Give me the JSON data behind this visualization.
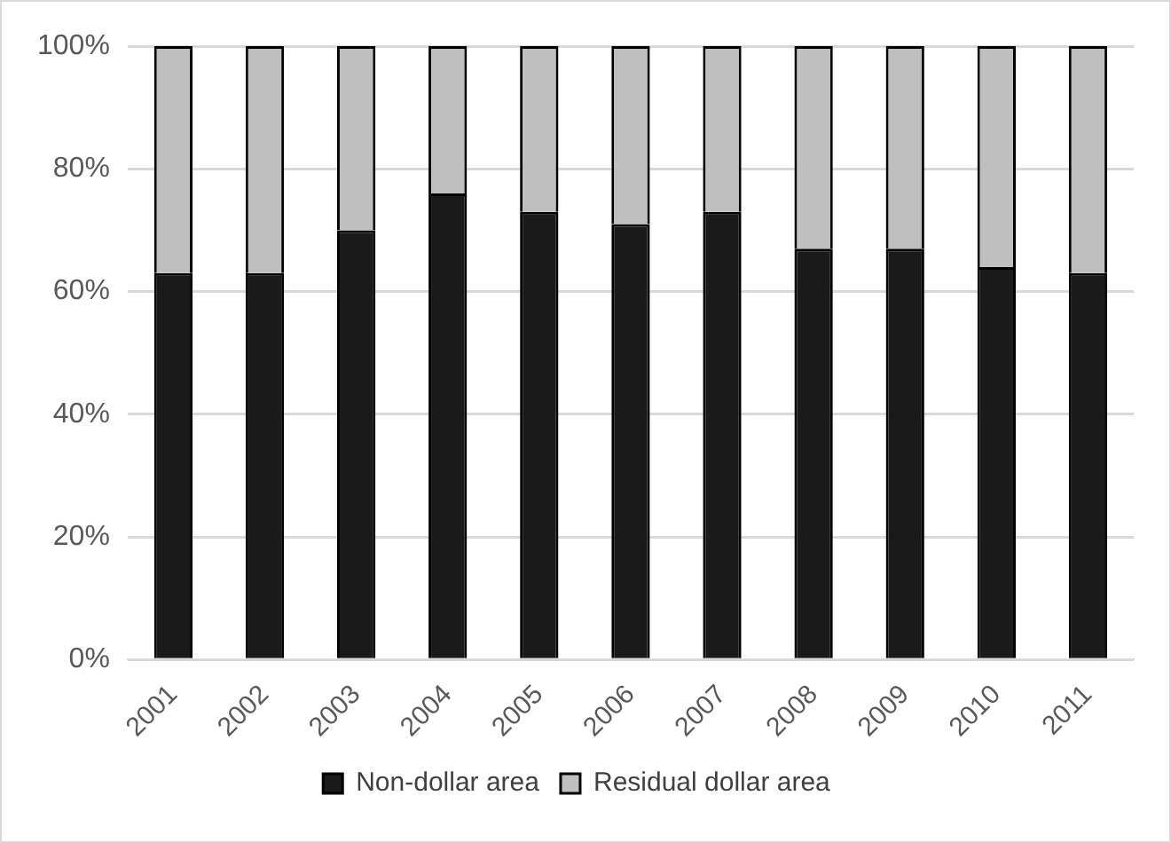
{
  "chart_data": {
    "type": "bar",
    "stacked": true,
    "categories": [
      "2001",
      "2002",
      "2003",
      "2004",
      "2005",
      "2006",
      "2007",
      "2008",
      "2009",
      "2010",
      "2011"
    ],
    "series": [
      {
        "name": "Non-dollar area",
        "color": "#1a1a1a",
        "values": [
          63,
          63,
          70,
          76,
          73,
          71,
          73,
          67,
          67,
          64,
          63
        ]
      },
      {
        "name": "Residual dollar area",
        "color": "#bfbfbf",
        "values": [
          37,
          37,
          30,
          24,
          27,
          29,
          27,
          33,
          33,
          36,
          37
        ]
      }
    ],
    "ylim": [
      0,
      100
    ],
    "yticks": [
      {
        "value": 0,
        "label": "0%"
      },
      {
        "value": 20,
        "label": "20%"
      },
      {
        "value": 40,
        "label": "40%"
      },
      {
        "value": 60,
        "label": "60%"
      },
      {
        "value": 80,
        "label": "80%"
      },
      {
        "value": 100,
        "label": "100%"
      }
    ],
    "grid": "y",
    "legend": "bottom"
  }
}
